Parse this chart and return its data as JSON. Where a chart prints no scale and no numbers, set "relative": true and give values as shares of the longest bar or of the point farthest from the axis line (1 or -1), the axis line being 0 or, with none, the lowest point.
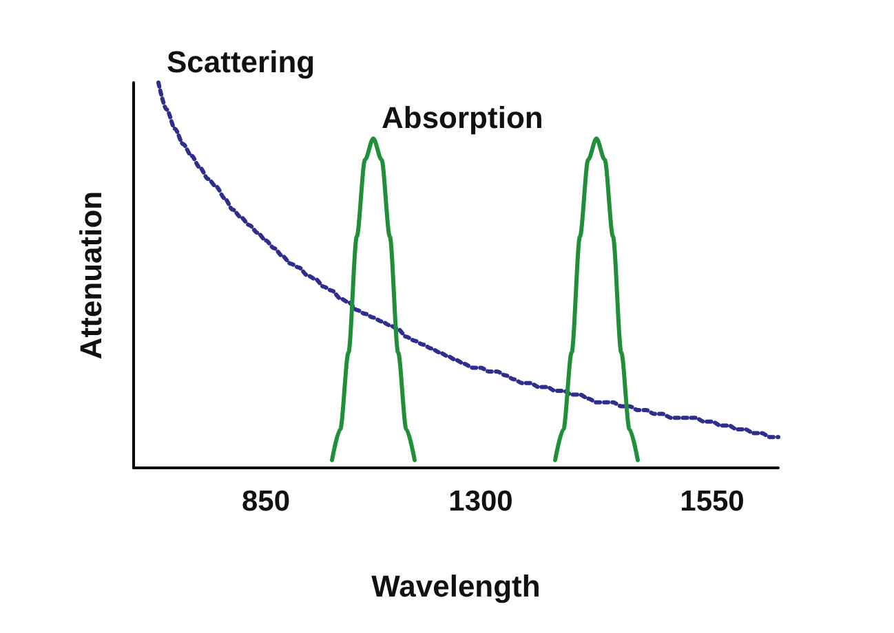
{
  "chart_data": {
    "type": "line",
    "xlabel": "Wavelength",
    "ylabel": "Attenuation",
    "relative": true,
    "grid": false,
    "legend": false,
    "categories": [
      null,
      null,
      null,
      null,
      null,
      null,
      null,
      null,
      null,
      null,
      null,
      null,
      null,
      null,
      null,
      null,
      "850",
      null,
      null,
      null,
      null,
      null,
      null,
      null,
      null,
      null,
      null,
      null,
      null,
      null,
      null,
      null,
      null,
      null,
      null,
      null,
      null,
      null,
      null,
      null,
      null,
      null,
      "1300",
      null,
      null,
      null,
      null,
      null,
      null,
      null,
      null,
      null,
      null,
      null,
      null,
      null,
      null,
      null,
      null,
      null,
      null,
      null,
      null,
      null,
      null,
      null,
      null,
      null,
      null,
      null,
      "1550",
      null,
      null,
      null,
      null,
      null,
      null,
      null,
      null
    ],
    "series": [
      {
        "name": "Scattering",
        "color": "#2e2e8c",
        "line_style": "dotted",
        "values": [
          null,
          null,
          null,
          1.0,
          0.93,
          0.88,
          0.84,
          0.81,
          0.78,
          0.75,
          0.73,
          0.7,
          0.67,
          0.65,
          0.63,
          0.61,
          0.59,
          0.57,
          0.55,
          0.53,
          0.52,
          0.5,
          0.49,
          0.47,
          0.46,
          0.44,
          0.43,
          0.41,
          0.4,
          0.39,
          0.38,
          0.37,
          0.36,
          0.34,
          0.33,
          0.32,
          0.31,
          0.3,
          0.29,
          0.28,
          0.27,
          0.26,
          0.26,
          0.25,
          0.25,
          0.24,
          0.23,
          0.22,
          0.22,
          0.21,
          0.21,
          0.2,
          0.2,
          0.19,
          0.19,
          0.18,
          0.17,
          0.17,
          0.17,
          0.16,
          0.16,
          0.15,
          0.15,
          0.14,
          0.14,
          0.13,
          0.13,
          0.13,
          0.13,
          0.12,
          0.12,
          0.11,
          0.11,
          0.1,
          0.1,
          0.09,
          0.09,
          0.08,
          0.08
        ]
      },
      {
        "name": "Absorption",
        "color": "#1f8f3a",
        "line_style": "solid",
        "values": [
          null,
          null,
          null,
          null,
          null,
          null,
          null,
          null,
          null,
          null,
          null,
          null,
          null,
          null,
          null,
          null,
          null,
          null,
          null,
          null,
          null,
          null,
          null,
          null,
          0.02,
          0.1,
          0.3,
          0.6,
          0.8,
          0.855,
          0.8,
          0.6,
          0.3,
          0.1,
          0.02,
          null,
          null,
          null,
          null,
          null,
          null,
          null,
          null,
          null,
          null,
          null,
          null,
          null,
          null,
          null,
          null,
          0.02,
          0.1,
          0.3,
          0.6,
          0.8,
          0.855,
          0.8,
          0.6,
          0.3,
          0.1,
          0.02,
          null,
          null,
          null,
          null,
          null,
          null,
          null,
          null,
          null,
          null,
          null,
          null,
          null,
          null,
          null,
          null,
          null
        ]
      }
    ]
  }
}
